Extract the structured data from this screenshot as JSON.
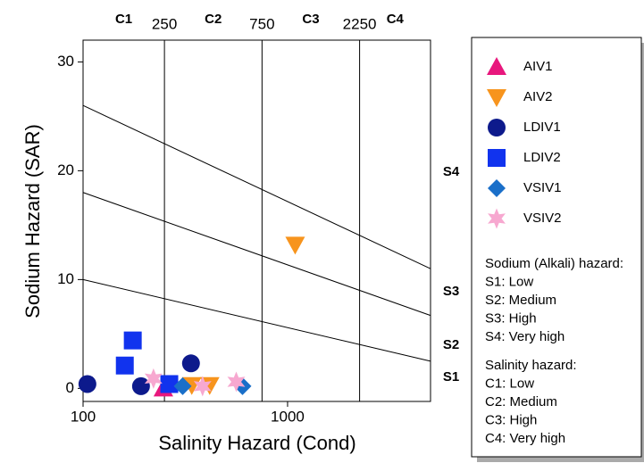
{
  "chart_data": {
    "type": "scatter",
    "x_label": "Salinity Hazard (Cond)",
    "y_label": "Sodium Hazard (SAR)",
    "xlim": [
      100,
      5000
    ],
    "ylim": [
      -1.2,
      32
    ],
    "log_x": true,
    "xticks": [
      100,
      1000
    ],
    "yticks": [
      0,
      10,
      20,
      30
    ],
    "c_boundaries": [
      250,
      750,
      2250
    ],
    "c_labels": [
      "C1",
      "C2",
      "C3",
      "C4"
    ],
    "s_labels": [
      "S1",
      "S2",
      "S3",
      "S4"
    ],
    "s_boundaries": [
      {
        "x": [
          100,
          5000
        ],
        "y": [
          26,
          11
        ]
      },
      {
        "x": [
          100,
          5000
        ],
        "y": [
          18,
          6.7
        ]
      },
      {
        "x": [
          100,
          5000
        ],
        "y": [
          10,
          2.5
        ]
      }
    ],
    "series": [
      {
        "name": "AIV1",
        "color": "#e8177d",
        "marker": "triangle",
        "x": [
          247
        ],
        "values": [
          0
        ]
      },
      {
        "name": "AIV2",
        "color": "#f7941d",
        "marker": "triangle-down",
        "x": [
          1089,
          416,
          340
        ],
        "values": [
          13.2,
          0.3,
          0.3
        ]
      },
      {
        "name": "LDIV1",
        "color": "#0d1a8c",
        "marker": "circle",
        "x": [
          105,
          192,
          337
        ],
        "values": [
          0.4,
          0.2,
          2.3
        ]
      },
      {
        "name": "LDIV2",
        "color": "#1133ee",
        "marker": "square",
        "x": [
          175,
          160,
          264
        ],
        "values": [
          4.4,
          2.1,
          0.4
        ]
      },
      {
        "name": "VSIV1",
        "color": "#1a6fc9",
        "marker": "diamond",
        "x": [
          307,
          602
        ],
        "values": [
          0.2,
          0.2
        ]
      },
      {
        "name": "VSIV2",
        "color": "#f7a8d0",
        "marker": "star",
        "x": [
          221,
          384,
          561
        ],
        "values": [
          0.9,
          0.2,
          0.6
        ]
      }
    ],
    "sodium_notes": [
      "Sodium (Alkali) hazard:",
      "S1: Low",
      "S2: Medium",
      "S3: High",
      "S4: Very high"
    ],
    "salinity_notes": [
      "Salinity hazard:",
      "C1: Low",
      "C2: Medium",
      "C3: High",
      "C4: Very high"
    ]
  }
}
